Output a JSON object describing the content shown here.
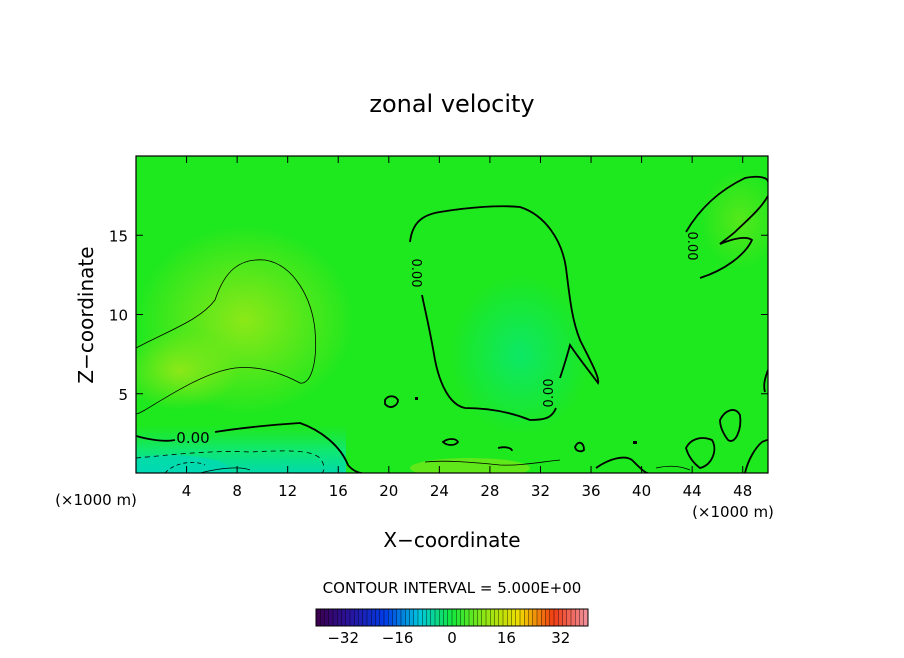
{
  "chart_data": {
    "type": "heatmap",
    "title": "zonal velocity",
    "xlabel": "X−coordinate",
    "ylabel": "Z−coordinate",
    "x_unit_left": "(×1000 m)",
    "x_unit_right": "(×1000 m)",
    "xlim": [
      0,
      50
    ],
    "ylim": [
      0,
      20
    ],
    "x_ticks": [
      4,
      8,
      12,
      16,
      20,
      24,
      28,
      32,
      36,
      40,
      44,
      48
    ],
    "y_ticks": [
      5,
      10,
      15
    ],
    "contour_interval_label": "CONTOUR INTERVAL = 5.000E+00",
    "contour_labels": [
      "0.00",
      "0.00",
      "0.00",
      "0.00"
    ],
    "colorbar": {
      "range": [
        -40,
        40
      ],
      "ticks": [
        -32,
        -16,
        0,
        16,
        32
      ],
      "tick_labels": [
        "−32",
        "−16",
        "0",
        "16",
        "32"
      ]
    },
    "colors": {
      "background_field": "#1fe81f",
      "positive_region": "#7fe81a",
      "negative_region": "#10e860",
      "strong_negative": "#00d0c0"
    }
  }
}
